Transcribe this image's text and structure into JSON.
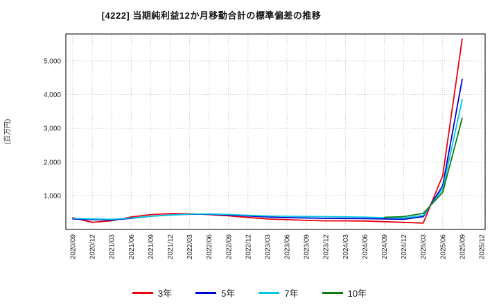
{
  "chart_data": {
    "type": "line",
    "title": "[4222]  当期純利益12か月移動合計の標準偏差の推移",
    "ylabel": "(百万円)",
    "xlabel": "",
    "ylim": [
      0,
      5800
    ],
    "yticks": [
      1000,
      2000,
      3000,
      4000,
      5000
    ],
    "grid": true,
    "legend_position": "bottom",
    "categories": [
      "2020/09",
      "2020/12",
      "2021/03",
      "2021/06",
      "2021/09",
      "2021/12",
      "2022/03",
      "2022/06",
      "2022/09",
      "2022/12",
      "2023/03",
      "2023/06",
      "2023/09",
      "2023/12",
      "2024/03",
      "2024/06",
      "2024/09",
      "2024/12",
      "2025/03",
      "2025/06",
      "2025/09",
      "2025/12"
    ],
    "series": [
      {
        "name": "3年",
        "color": "#e8000d",
        "values": [
          350,
          210,
          260,
          370,
          440,
          470,
          465,
          440,
          405,
          355,
          310,
          290,
          270,
          255,
          255,
          250,
          230,
          210,
          190,
          1600,
          5650,
          null
        ]
      },
      {
        "name": "5年",
        "color": "#0000cd",
        "values": [
          310,
          290,
          280,
          330,
          390,
          430,
          450,
          450,
          430,
          400,
          370,
          350,
          340,
          330,
          325,
          320,
          310,
          300,
          380,
          1300,
          4450,
          null
        ]
      },
      {
        "name": "7年",
        "color": "#00c8e0",
        "values": [
          330,
          310,
          300,
          340,
          390,
          425,
          455,
          460,
          445,
          420,
          400,
          390,
          385,
          380,
          375,
          365,
          350,
          340,
          420,
          1200,
          3850,
          null
        ]
      },
      {
        "name": "10年",
        "color": "#0f7a0f",
        "values": [
          null,
          null,
          null,
          null,
          null,
          null,
          null,
          null,
          null,
          null,
          null,
          null,
          null,
          null,
          null,
          null,
          360,
          380,
          480,
          1100,
          3300,
          null
        ]
      }
    ]
  }
}
